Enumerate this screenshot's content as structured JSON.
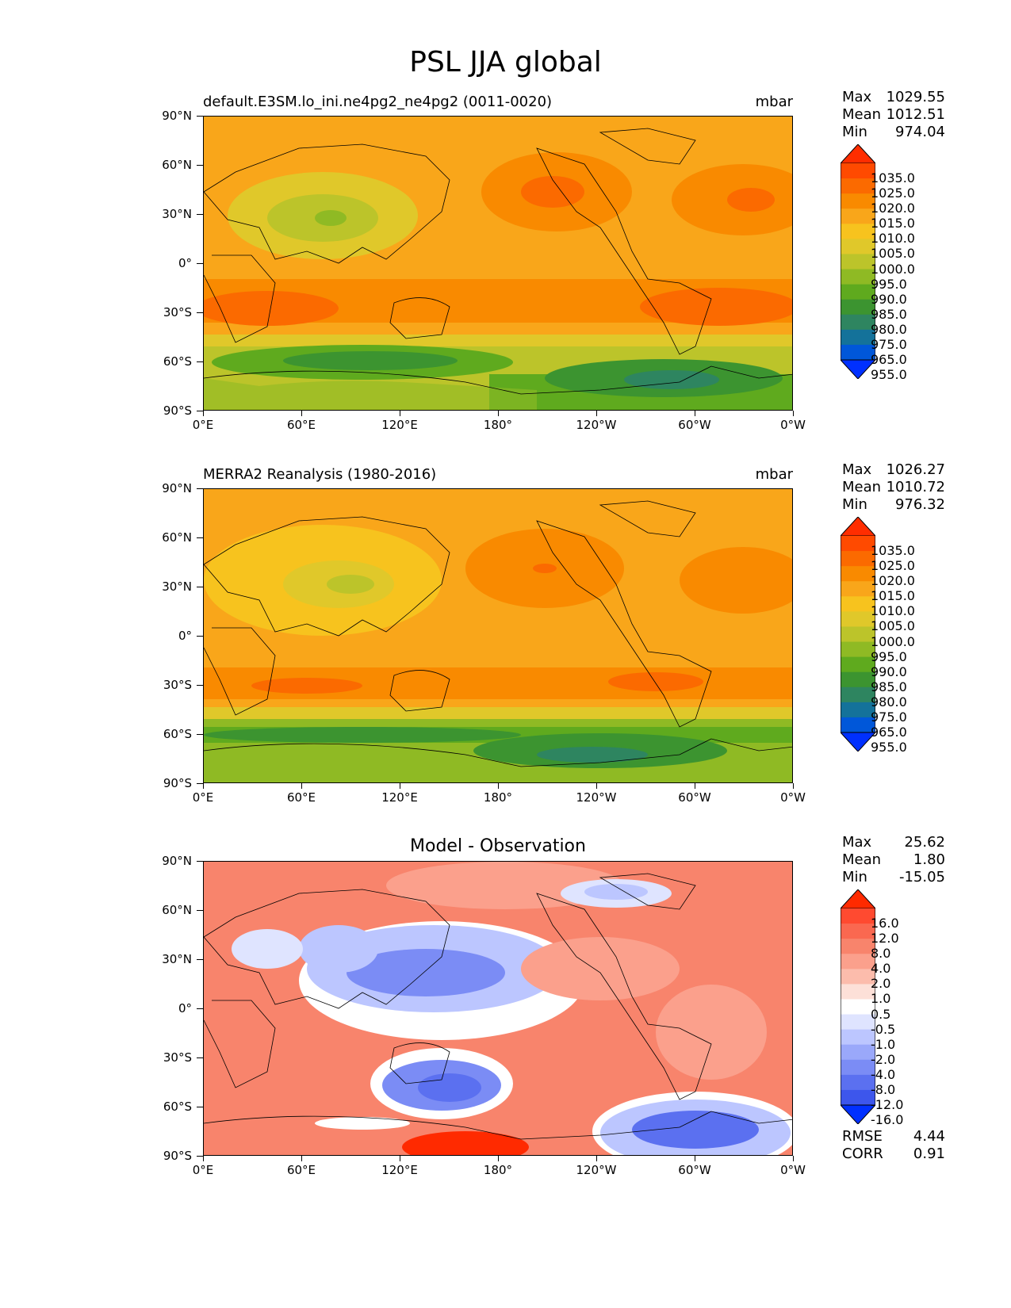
{
  "figure_title": "PSL JJA global",
  "panels": [
    {
      "title_left": "default.E3SM.lo_ini.ne4pg2_ne4pg2 (0011-0020)",
      "title_right": "mbar",
      "stats": {
        "max_label": "Max",
        "max": "1029.55",
        "mean_label": "Mean",
        "mean": "1012.51",
        "min_label": "Min",
        "min": "974.04"
      },
      "colorbar": {
        "labels": [
          "1035.0",
          "1025.0",
          "1020.0",
          "1015.0",
          "1010.0",
          "1005.0",
          "1000.0",
          "995.0",
          "990.0",
          "985.0",
          "980.0",
          "975.0",
          "965.0",
          "955.0"
        ],
        "colors": [
          "#ff2d00",
          "#ff4a00",
          "#fb6a00",
          "#f98a00",
          "#f9a61a",
          "#f7c31e",
          "#e0c82a",
          "#bcc42a",
          "#8fba24",
          "#5faa1e",
          "#3c9430",
          "#2e8560",
          "#14729a",
          "#0057d9",
          "#0030ff"
        ]
      }
    },
    {
      "title_left": "MERRA2 Reanalysis (1980-2016)",
      "title_right": "mbar",
      "stats": {
        "max_label": "Max",
        "max": "1026.27",
        "mean_label": "Mean",
        "mean": "1010.72",
        "min_label": "Min",
        "min": "976.32"
      },
      "colorbar": {
        "labels": [
          "1035.0",
          "1025.0",
          "1020.0",
          "1015.0",
          "1010.0",
          "1005.0",
          "1000.0",
          "995.0",
          "990.0",
          "985.0",
          "980.0",
          "975.0",
          "965.0",
          "955.0"
        ],
        "colors": [
          "#ff2d00",
          "#ff4a00",
          "#fb6a00",
          "#f98a00",
          "#f9a61a",
          "#f7c31e",
          "#e0c82a",
          "#bcc42a",
          "#8fba24",
          "#5faa1e",
          "#3c9430",
          "#2e8560",
          "#14729a",
          "#0057d9",
          "#0030ff"
        ]
      }
    },
    {
      "title_center": "Model - Observation",
      "stats": {
        "max_label": "Max",
        "max": "25.62",
        "mean_label": "Mean",
        "mean": "1.80",
        "min_label": "Min",
        "min": "-15.05"
      },
      "colorbar": {
        "labels": [
          "16.0",
          "12.0",
          "8.0",
          "4.0",
          "2.0",
          "1.0",
          "0.5",
          "-0.5",
          "-1.0",
          "-2.0",
          "-4.0",
          "-8.0",
          "-12.0",
          "-16.0"
        ],
        "colors": [
          "#ff2a00",
          "#ff4a30",
          "#fa6850",
          "#f8846c",
          "#fba08c",
          "#fcbcac",
          "#fde0d8",
          "#ffffff",
          "#dfe4ff",
          "#bcc6ff",
          "#9aa8fa",
          "#7b8cf5",
          "#5b70f0",
          "#3d56ec",
          "#0030ff"
        ]
      },
      "metrics": {
        "rmse_label": "RMSE",
        "rmse": "4.44",
        "corr_label": "CORR",
        "corr": "0.91"
      }
    }
  ],
  "axes": {
    "lat_labels": [
      "90°N",
      "60°N",
      "30°N",
      "0°",
      "30°S",
      "60°S",
      "90°S"
    ],
    "lon_labels": [
      "0°E",
      "60°E",
      "120°E",
      "180°",
      "120°W",
      "60°W",
      "0°W"
    ]
  },
  "chart_data": [
    {
      "type": "heatmap",
      "title": "default.E3SM.lo_ini.ne4pg2_ne4pg2 (0011-0020)",
      "variable": "PSL",
      "season": "JJA",
      "units": "mbar",
      "x_range": [
        0,
        360
      ],
      "y_range": [
        -90,
        90
      ],
      "max": 1029.55,
      "mean": 1012.51,
      "min": 974.04
    },
    {
      "type": "heatmap",
      "title": "MERRA2 Reanalysis (1980-2016)",
      "variable": "PSL",
      "season": "JJA",
      "units": "mbar",
      "x_range": [
        0,
        360
      ],
      "y_range": [
        -90,
        90
      ],
      "max": 1026.27,
      "mean": 1010.72,
      "min": 976.32
    },
    {
      "type": "heatmap",
      "title": "Model - Observation",
      "variable": "PSL",
      "season": "JJA",
      "units": "mbar",
      "x_range": [
        0,
        360
      ],
      "y_range": [
        -90,
        90
      ],
      "max": 25.62,
      "mean": 1.8,
      "min": -15.05,
      "rmse": 4.44,
      "corr": 0.91
    }
  ]
}
